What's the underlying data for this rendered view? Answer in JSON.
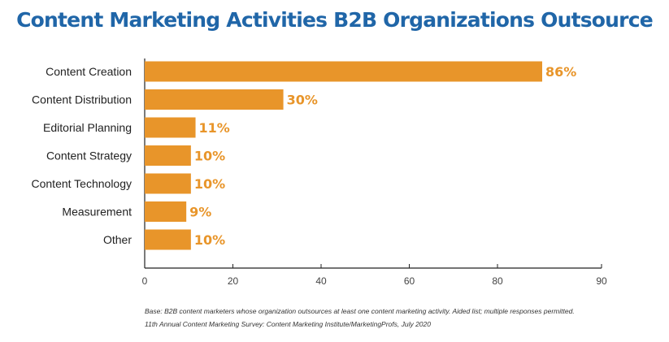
{
  "chart_data": {
    "type": "bar",
    "orientation": "horizontal",
    "title": "Content Marketing Activities B2B Organizations Outsource",
    "categories": [
      "Content Creation",
      "Content Distribution",
      "Editorial Planning",
      "Content Strategy",
      "Content Technology",
      "Measurement",
      "Other"
    ],
    "values": [
      86,
      30,
      11,
      10,
      10,
      9,
      10
    ],
    "data_labels": [
      "86%",
      "30%",
      "11%",
      "10%",
      "10%",
      "9%",
      "10%"
    ],
    "xticks": [
      "0",
      "20",
      "40",
      "60",
      "80",
      "90"
    ],
    "xlim": [
      0,
      90
    ],
    "grid": false,
    "bar_color": "#e8952a",
    "label_color": "#e8952a",
    "title_color": "#2066a8"
  },
  "footnotes": {
    "base": "Base: B2B content marketers whose organization outsources at least one content marketing activity. Aided list; multiple responses permitted.",
    "source": "11th Annual Content Marketing Survey: Content Marketing Institute/MarketingProfs, July 2020"
  }
}
